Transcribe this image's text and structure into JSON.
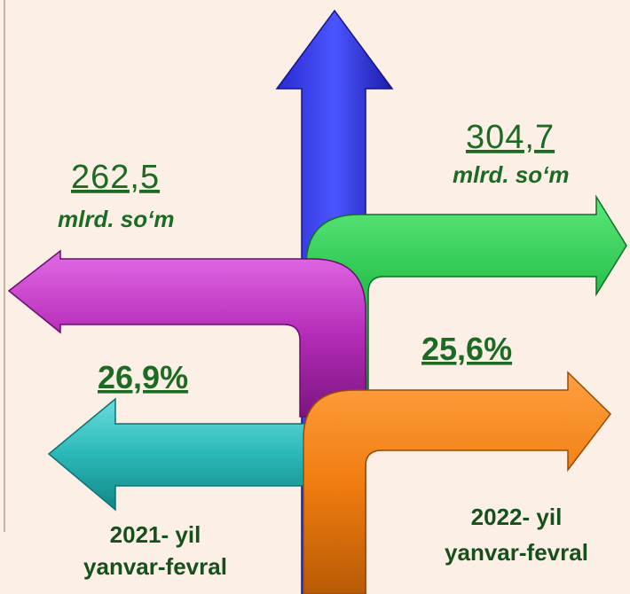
{
  "left": {
    "amount": "262,5",
    "unit": "mlrd. so‘m",
    "percent": "26,9%",
    "period": [
      "2021- yil",
      "yanvar-fevral"
    ]
  },
  "right": {
    "amount": "304,7",
    "unit": "mlrd. so‘m",
    "percent": "25,6%",
    "period": [
      "2022- yil",
      "yanvar-fevral"
    ]
  }
}
